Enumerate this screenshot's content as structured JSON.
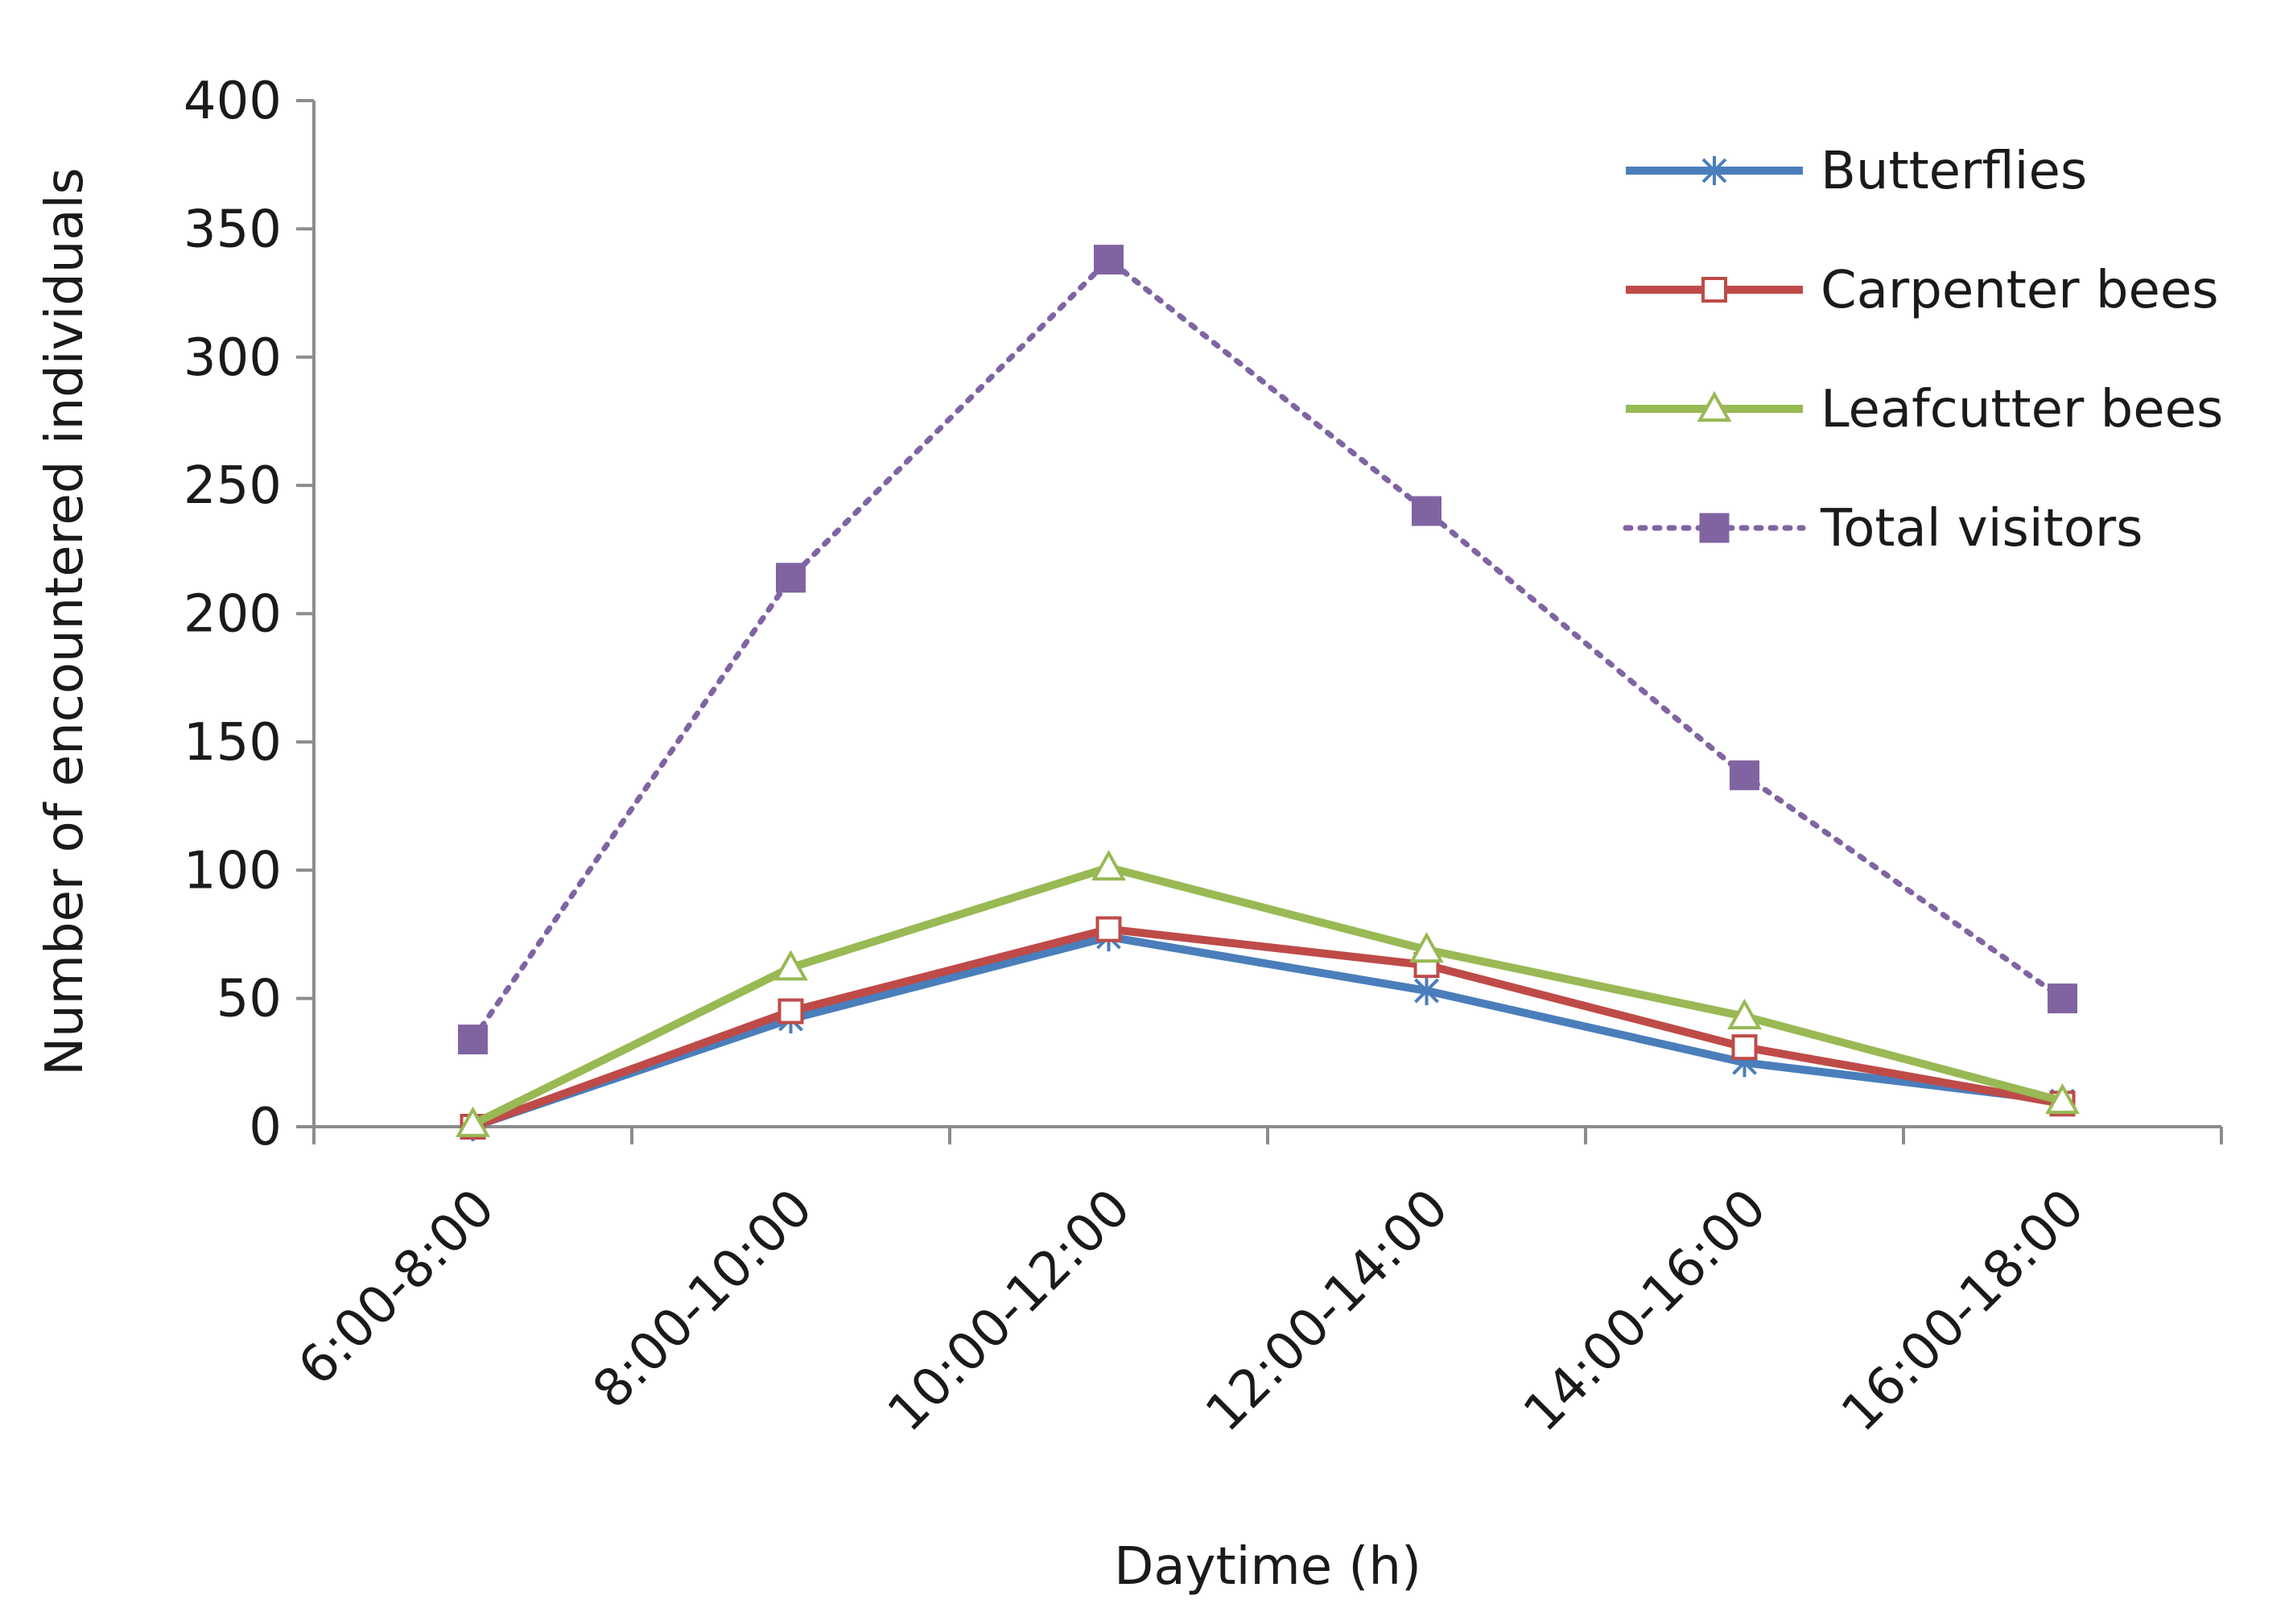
{
  "chart_data": {
    "type": "line",
    "title": "",
    "xlabel": "Daytime (h)",
    "ylabel": "Number of encountered individuals",
    "categories": [
      "6:00-8:00",
      "8:00-10:00",
      "10:00-12:00",
      "12:00-14:00",
      "14:00-16:00",
      "16:00-18:00"
    ],
    "ylim": [
      0,
      400
    ],
    "yticks": [
      0,
      50,
      100,
      150,
      200,
      250,
      300,
      350,
      400
    ],
    "grid": false,
    "legend_position": "top-right",
    "series": [
      {
        "name": "Butterflies",
        "values": [
          0,
          42,
          74,
          53,
          25,
          10
        ],
        "color": "#4a7ebb",
        "marker": "asterisk",
        "dash": "solid"
      },
      {
        "name": "Carpenter bees",
        "values": [
          0,
          45,
          77,
          63,
          31,
          9
        ],
        "color": "#be4b48",
        "marker": "open-square",
        "dash": "solid"
      },
      {
        "name": "Leafcutter bees",
        "values": [
          1,
          62,
          101,
          69,
          43,
          10
        ],
        "color": "#98b954",
        "marker": "open-triangle",
        "dash": "solid"
      },
      {
        "name": "Total visitors",
        "values": [
          34,
          214,
          338,
          240,
          137,
          50
        ],
        "color": "#8064a2",
        "marker": "filled-square",
        "dash": "dotted"
      }
    ]
  }
}
